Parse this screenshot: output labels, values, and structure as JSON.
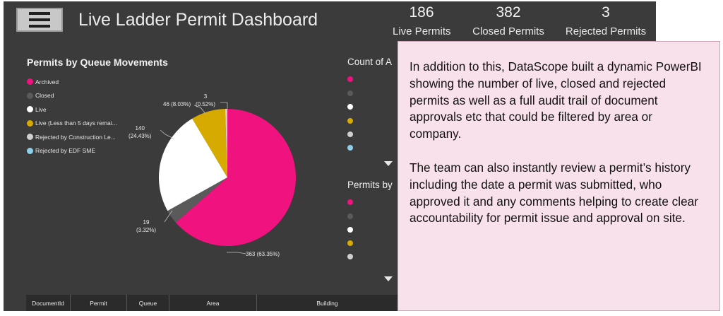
{
  "header": {
    "menu_icon": "hamburger-menu-icon",
    "title": "Live Ladder Permit Dashboard"
  },
  "kpis": [
    {
      "value": "186",
      "label": "Live Permits"
    },
    {
      "value": "382",
      "label": "Closed Permits"
    },
    {
      "value": "3",
      "label": "Rejected Permits"
    }
  ],
  "queue_chart": {
    "title": "Permits by Queue Movements",
    "legend": [
      {
        "label": "Archived",
        "color": "#f0127f"
      },
      {
        "label": "Closed",
        "color": "#5a5a5a"
      },
      {
        "label": "Live",
        "color": "#ffffff"
      },
      {
        "label": "Live (Less than 5 days remai...",
        "color": "#d7aa00"
      },
      {
        "label": "Rejected by Construction Le...",
        "color": "#cfcfcf"
      },
      {
        "label": "Rejected by EDF SME",
        "color": "#8fd0e8"
      }
    ],
    "slice_labels": [
      {
        "name": "archived",
        "line1": "363 (63.35%)",
        "line2": ""
      },
      {
        "name": "closed",
        "line1": "19",
        "line2": "(3.32%)"
      },
      {
        "name": "live",
        "line1": "140",
        "line2": "(24.43%)"
      },
      {
        "name": "live-less-5-days",
        "line1": "46 (8.03%)",
        "line2": ""
      },
      {
        "name": "rejected",
        "line1": "3",
        "line2": "(0.52%)"
      }
    ]
  },
  "side_charts": {
    "count_title": "Count of A",
    "permits_by_title": "Permits by",
    "count_dots": [
      "#f0127f",
      "#5a5a5a",
      "#ffffff",
      "#d7aa00",
      "#cfcfcf",
      "#8fd0e8"
    ],
    "permits_dots": [
      "#f0127f",
      "#5a5a5a",
      "#ffffff",
      "#d7aa00",
      "#cfcfcf"
    ],
    "expand_icon": "triangle-down-icon"
  },
  "table": {
    "headers": [
      "DocumentId",
      "Permit",
      "Queue",
      "Area",
      "Building"
    ]
  },
  "info_box": {
    "paragraph1": "In addition to this, DataScope built a dynamic PowerBI showing the number of live, closed and rejected permits as well as a full audit trail of document approvals etc that could be filtered by area or company.",
    "paragraph2": "The team can also instantly review a permit’s history including the date a permit was submitted, who approved it and any comments helping to create clear accountability for permit issue and approval on site."
  },
  "chart_data": {
    "type": "pie",
    "title": "Permits by Queue Movements",
    "categories": [
      "Archived",
      "Closed",
      "Live",
      "Live (Less than 5 days remai...",
      "Rejected by Construction Le...",
      "Rejected by EDF SME"
    ],
    "values": [
      363,
      19,
      140,
      46,
      3,
      0
    ],
    "percentages": [
      63.35,
      3.32,
      24.43,
      8.03,
      0.52,
      0
    ],
    "colors": [
      "#f0127f",
      "#5a5a5a",
      "#ffffff",
      "#d7aa00",
      "#cfcfcf",
      "#8fd0e8"
    ],
    "legend_position": "top-left"
  }
}
